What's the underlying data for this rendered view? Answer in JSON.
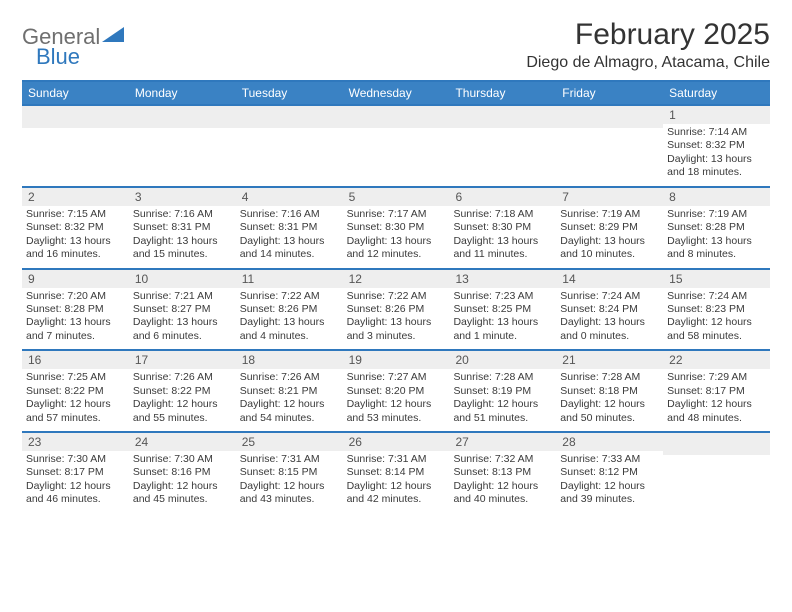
{
  "brand": {
    "general": "General",
    "blue": "Blue"
  },
  "title": "February 2025",
  "location": "Diego de Almagro, Atacama, Chile",
  "colors": {
    "header_bg": "#3a82c4",
    "header_text": "#ffffff",
    "accent_border": "#2f78bd",
    "daynum_bg": "#eeeeee",
    "body_text": "#333333",
    "logo_gray": "#6f6f6f",
    "logo_blue": "#2f78bd"
  },
  "weekdays": [
    "Sunday",
    "Monday",
    "Tuesday",
    "Wednesday",
    "Thursday",
    "Friday",
    "Saturday"
  ],
  "layout": {
    "columns": 7,
    "rows": 5,
    "first_day_column_index": 6
  },
  "days": [
    {
      "n": "1",
      "sunrise": "Sunrise: 7:14 AM",
      "sunset": "Sunset: 8:32 PM",
      "d1": "Daylight: 13 hours",
      "d2": "and 18 minutes."
    },
    {
      "n": "2",
      "sunrise": "Sunrise: 7:15 AM",
      "sunset": "Sunset: 8:32 PM",
      "d1": "Daylight: 13 hours",
      "d2": "and 16 minutes."
    },
    {
      "n": "3",
      "sunrise": "Sunrise: 7:16 AM",
      "sunset": "Sunset: 8:31 PM",
      "d1": "Daylight: 13 hours",
      "d2": "and 15 minutes."
    },
    {
      "n": "4",
      "sunrise": "Sunrise: 7:16 AM",
      "sunset": "Sunset: 8:31 PM",
      "d1": "Daylight: 13 hours",
      "d2": "and 14 minutes."
    },
    {
      "n": "5",
      "sunrise": "Sunrise: 7:17 AM",
      "sunset": "Sunset: 8:30 PM",
      "d1": "Daylight: 13 hours",
      "d2": "and 12 minutes."
    },
    {
      "n": "6",
      "sunrise": "Sunrise: 7:18 AM",
      "sunset": "Sunset: 8:30 PM",
      "d1": "Daylight: 13 hours",
      "d2": "and 11 minutes."
    },
    {
      "n": "7",
      "sunrise": "Sunrise: 7:19 AM",
      "sunset": "Sunset: 8:29 PM",
      "d1": "Daylight: 13 hours",
      "d2": "and 10 minutes."
    },
    {
      "n": "8",
      "sunrise": "Sunrise: 7:19 AM",
      "sunset": "Sunset: 8:28 PM",
      "d1": "Daylight: 13 hours",
      "d2": "and 8 minutes."
    },
    {
      "n": "9",
      "sunrise": "Sunrise: 7:20 AM",
      "sunset": "Sunset: 8:28 PM",
      "d1": "Daylight: 13 hours",
      "d2": "and 7 minutes."
    },
    {
      "n": "10",
      "sunrise": "Sunrise: 7:21 AM",
      "sunset": "Sunset: 8:27 PM",
      "d1": "Daylight: 13 hours",
      "d2": "and 6 minutes."
    },
    {
      "n": "11",
      "sunrise": "Sunrise: 7:22 AM",
      "sunset": "Sunset: 8:26 PM",
      "d1": "Daylight: 13 hours",
      "d2": "and 4 minutes."
    },
    {
      "n": "12",
      "sunrise": "Sunrise: 7:22 AM",
      "sunset": "Sunset: 8:26 PM",
      "d1": "Daylight: 13 hours",
      "d2": "and 3 minutes."
    },
    {
      "n": "13",
      "sunrise": "Sunrise: 7:23 AM",
      "sunset": "Sunset: 8:25 PM",
      "d1": "Daylight: 13 hours",
      "d2": "and 1 minute."
    },
    {
      "n": "14",
      "sunrise": "Sunrise: 7:24 AM",
      "sunset": "Sunset: 8:24 PM",
      "d1": "Daylight: 13 hours",
      "d2": "and 0 minutes."
    },
    {
      "n": "15",
      "sunrise": "Sunrise: 7:24 AM",
      "sunset": "Sunset: 8:23 PM",
      "d1": "Daylight: 12 hours",
      "d2": "and 58 minutes."
    },
    {
      "n": "16",
      "sunrise": "Sunrise: 7:25 AM",
      "sunset": "Sunset: 8:22 PM",
      "d1": "Daylight: 12 hours",
      "d2": "and 57 minutes."
    },
    {
      "n": "17",
      "sunrise": "Sunrise: 7:26 AM",
      "sunset": "Sunset: 8:22 PM",
      "d1": "Daylight: 12 hours",
      "d2": "and 55 minutes."
    },
    {
      "n": "18",
      "sunrise": "Sunrise: 7:26 AM",
      "sunset": "Sunset: 8:21 PM",
      "d1": "Daylight: 12 hours",
      "d2": "and 54 minutes."
    },
    {
      "n": "19",
      "sunrise": "Sunrise: 7:27 AM",
      "sunset": "Sunset: 8:20 PM",
      "d1": "Daylight: 12 hours",
      "d2": "and 53 minutes."
    },
    {
      "n": "20",
      "sunrise": "Sunrise: 7:28 AM",
      "sunset": "Sunset: 8:19 PM",
      "d1": "Daylight: 12 hours",
      "d2": "and 51 minutes."
    },
    {
      "n": "21",
      "sunrise": "Sunrise: 7:28 AM",
      "sunset": "Sunset: 8:18 PM",
      "d1": "Daylight: 12 hours",
      "d2": "and 50 minutes."
    },
    {
      "n": "22",
      "sunrise": "Sunrise: 7:29 AM",
      "sunset": "Sunset: 8:17 PM",
      "d1": "Daylight: 12 hours",
      "d2": "and 48 minutes."
    },
    {
      "n": "23",
      "sunrise": "Sunrise: 7:30 AM",
      "sunset": "Sunset: 8:17 PM",
      "d1": "Daylight: 12 hours",
      "d2": "and 46 minutes."
    },
    {
      "n": "24",
      "sunrise": "Sunrise: 7:30 AM",
      "sunset": "Sunset: 8:16 PM",
      "d1": "Daylight: 12 hours",
      "d2": "and 45 minutes."
    },
    {
      "n": "25",
      "sunrise": "Sunrise: 7:31 AM",
      "sunset": "Sunset: 8:15 PM",
      "d1": "Daylight: 12 hours",
      "d2": "and 43 minutes."
    },
    {
      "n": "26",
      "sunrise": "Sunrise: 7:31 AM",
      "sunset": "Sunset: 8:14 PM",
      "d1": "Daylight: 12 hours",
      "d2": "and 42 minutes."
    },
    {
      "n": "27",
      "sunrise": "Sunrise: 7:32 AM",
      "sunset": "Sunset: 8:13 PM",
      "d1": "Daylight: 12 hours",
      "d2": "and 40 minutes."
    },
    {
      "n": "28",
      "sunrise": "Sunrise: 7:33 AM",
      "sunset": "Sunset: 8:12 PM",
      "d1": "Daylight: 12 hours",
      "d2": "and 39 minutes."
    }
  ]
}
